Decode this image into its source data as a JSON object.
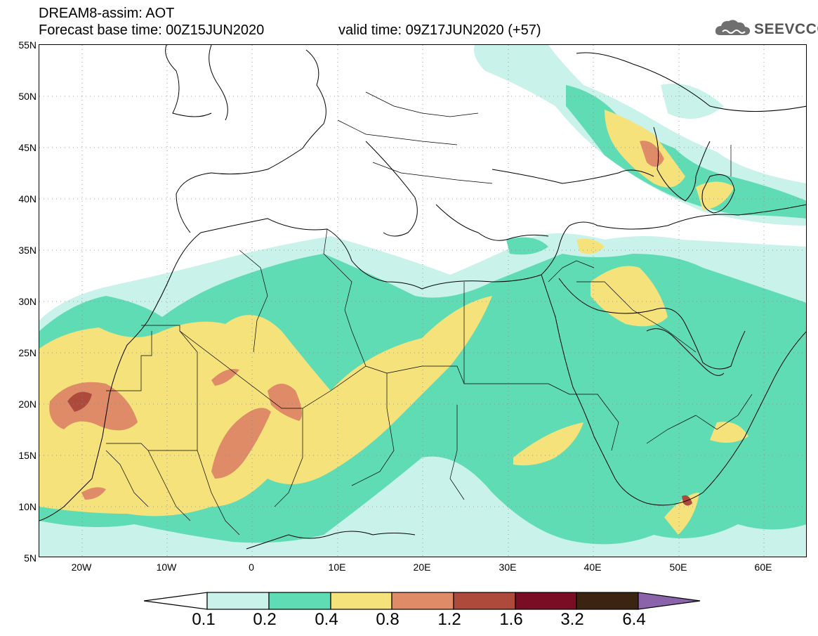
{
  "header": {
    "title_line1": "DREAM8-assim: AOT",
    "title_line2": "Forecast base time: 00Z15JUN2020",
    "valid_time": "valid time: 09Z17JUN2020 (+57)",
    "logo_text": "SEEVCCC"
  },
  "map": {
    "lat_labels": [
      "55N",
      "50N",
      "45N",
      "40N",
      "35N",
      "30N",
      "25N",
      "20N",
      "15N",
      "10N",
      "5N"
    ],
    "lon_labels": [
      "20W",
      "10W",
      "0",
      "10E",
      "20E",
      "30E",
      "40E",
      "50E",
      "60E"
    ],
    "lat_range": [
      5,
      55
    ],
    "lon_range": [
      -25,
      65
    ],
    "gridlines": "dotted",
    "field": "Aerosol optical thickness"
  },
  "colorbar": {
    "labels": [
      "0.1",
      "0.2",
      "0.4",
      "0.8",
      "1.2",
      "1.6",
      "3.2",
      "6.4"
    ],
    "colors": [
      "#ffffff",
      "#c8f2ea",
      "#5fdcb4",
      "#f5e27a",
      "#e08b68",
      "#ad4a3c",
      "#7a0d24",
      "#3b2412",
      "#8a63ab"
    ]
  }
}
